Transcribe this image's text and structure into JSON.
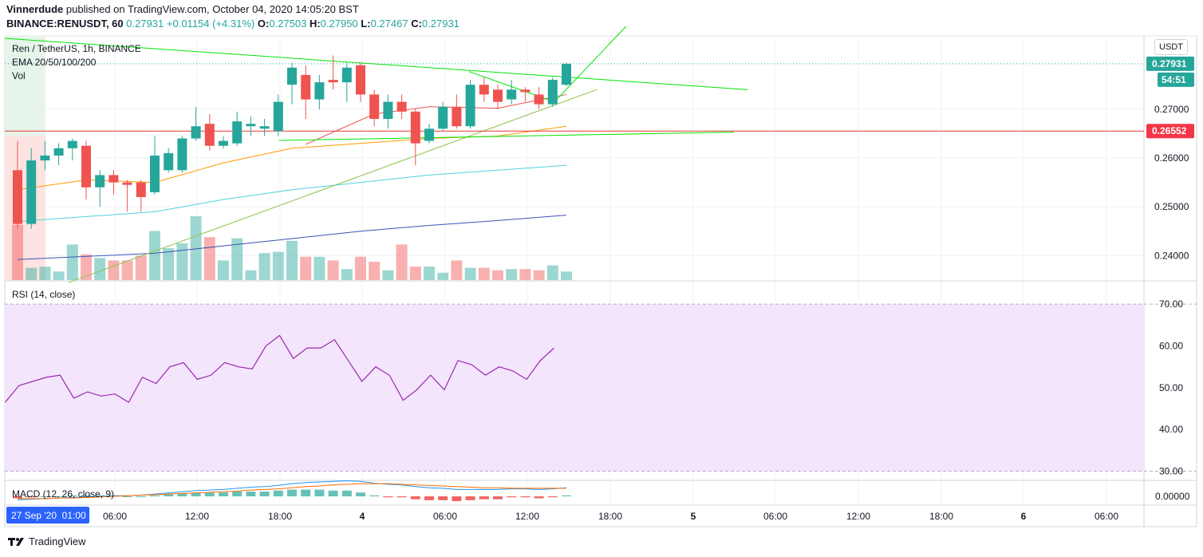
{
  "header": {
    "author": "Vinnerdude",
    "published": "published on TradingView.com, October 04, 2020 14:05:20 BST",
    "symbol": "BINANCE:RENUSDT, 60",
    "last": "0.27931",
    "change": "+0.01154 (+4.31%)",
    "o_label": "O:",
    "o": "0.27503",
    "h_label": "H:",
    "h": "0.27950",
    "l_label": "L:",
    "l": "0.27467",
    "c_label": "C:",
    "c": "0.27931"
  },
  "legend": {
    "title": "Ren / TetherUS, 1h, BINANCE",
    "ema": "EMA 20/50/100/200",
    "vol": "Vol",
    "rsi": "RSI (14, close)",
    "macd": "MACD (12, 26, close, 9)"
  },
  "currency_button": "USDT",
  "footer": {
    "brand": "TradingView"
  },
  "colors": {
    "up": "#26a69a",
    "down": "#ef5350",
    "rsi": "#9c27b0",
    "rsi_band": "#f3e5fc",
    "ema20": "#ef5350",
    "ema50": "#ff9800",
    "ema100": "#4dd0e1",
    "ema200": "#3f51b5",
    "trend": "#00e600",
    "hline": "#e53935"
  },
  "chart_data": [
    {
      "type": "candlestick",
      "title": "Ren / TetherUS, 1h, BINANCE",
      "x_ticks": [
        "06:00",
        "12:00",
        "18:00",
        "4",
        "06:00",
        "12:00",
        "18:00",
        "5",
        "06:00",
        "12:00",
        "18:00",
        "6",
        "06:00"
      ],
      "x_range_label": "27 Sep '20  01:00",
      "y_ticks": [
        "0.24000",
        "0.25000",
        "0.26000",
        "0.27000"
      ],
      "ylim": [
        0.235,
        0.285
      ],
      "last_price_label": "0.27931",
      "countdown_label": "54:51",
      "hline_label": "0.26552",
      "hline_value": 0.26552,
      "candles": [
        {
          "o": 0.2575,
          "h": 0.2635,
          "l": 0.2455,
          "c": 0.2465
        },
        {
          "o": 0.2465,
          "h": 0.262,
          "l": 0.2455,
          "c": 0.2595
        },
        {
          "o": 0.2595,
          "h": 0.2635,
          "l": 0.2575,
          "c": 0.2605
        },
        {
          "o": 0.2605,
          "h": 0.263,
          "l": 0.2585,
          "c": 0.262
        },
        {
          "o": 0.262,
          "h": 0.264,
          "l": 0.2595,
          "c": 0.2635
        },
        {
          "o": 0.2625,
          "h": 0.2635,
          "l": 0.2515,
          "c": 0.254
        },
        {
          "o": 0.254,
          "h": 0.2575,
          "l": 0.25,
          "c": 0.2565
        },
        {
          "o": 0.2565,
          "h": 0.2575,
          "l": 0.2525,
          "c": 0.255
        },
        {
          "o": 0.255,
          "h": 0.2555,
          "l": 0.249,
          "c": 0.2545
        },
        {
          "o": 0.255,
          "h": 0.2555,
          "l": 0.249,
          "c": 0.252
        },
        {
          "o": 0.253,
          "h": 0.2645,
          "l": 0.2525,
          "c": 0.2605
        },
        {
          "o": 0.2575,
          "h": 0.262,
          "l": 0.257,
          "c": 0.261
        },
        {
          "o": 0.2575,
          "h": 0.2645,
          "l": 0.257,
          "c": 0.264
        },
        {
          "o": 0.264,
          "h": 0.2705,
          "l": 0.2635,
          "c": 0.2665
        },
        {
          "o": 0.267,
          "h": 0.269,
          "l": 0.2615,
          "c": 0.2625
        },
        {
          "o": 0.2625,
          "h": 0.2645,
          "l": 0.262,
          "c": 0.2635
        },
        {
          "o": 0.263,
          "h": 0.2695,
          "l": 0.2625,
          "c": 0.2675
        },
        {
          "o": 0.2665,
          "h": 0.2685,
          "l": 0.2645,
          "c": 0.267
        },
        {
          "o": 0.266,
          "h": 0.268,
          "l": 0.2645,
          "c": 0.2665
        },
        {
          "o": 0.2655,
          "h": 0.273,
          "l": 0.2645,
          "c": 0.2715
        },
        {
          "o": 0.275,
          "h": 0.2795,
          "l": 0.271,
          "c": 0.2785
        },
        {
          "o": 0.277,
          "h": 0.279,
          "l": 0.268,
          "c": 0.272
        },
        {
          "o": 0.272,
          "h": 0.277,
          "l": 0.27,
          "c": 0.2755
        },
        {
          "o": 0.276,
          "h": 0.281,
          "l": 0.274,
          "c": 0.2755
        },
        {
          "o": 0.2755,
          "h": 0.2795,
          "l": 0.2715,
          "c": 0.2785
        },
        {
          "o": 0.279,
          "h": 0.2795,
          "l": 0.2715,
          "c": 0.273
        },
        {
          "o": 0.273,
          "h": 0.274,
          "l": 0.2665,
          "c": 0.268
        },
        {
          "o": 0.268,
          "h": 0.273,
          "l": 0.266,
          "c": 0.2715
        },
        {
          "o": 0.2715,
          "h": 0.273,
          "l": 0.268,
          "c": 0.2695
        },
        {
          "o": 0.2695,
          "h": 0.27,
          "l": 0.2585,
          "c": 0.263
        },
        {
          "o": 0.2635,
          "h": 0.267,
          "l": 0.263,
          "c": 0.266
        },
        {
          "o": 0.266,
          "h": 0.2715,
          "l": 0.2655,
          "c": 0.2705
        },
        {
          "o": 0.2705,
          "h": 0.273,
          "l": 0.266,
          "c": 0.2665
        },
        {
          "o": 0.2665,
          "h": 0.276,
          "l": 0.266,
          "c": 0.275
        },
        {
          "o": 0.275,
          "h": 0.2765,
          "l": 0.2715,
          "c": 0.273
        },
        {
          "o": 0.274,
          "h": 0.275,
          "l": 0.27,
          "c": 0.2715
        },
        {
          "o": 0.272,
          "h": 0.276,
          "l": 0.271,
          "c": 0.274
        },
        {
          "o": 0.274,
          "h": 0.2745,
          "l": 0.2715,
          "c": 0.2735
        },
        {
          "o": 0.273,
          "h": 0.2745,
          "l": 0.27,
          "c": 0.271
        },
        {
          "o": 0.271,
          "h": 0.2765,
          "l": 0.2705,
          "c": 0.276
        },
        {
          "o": 0.275,
          "h": 0.2795,
          "l": 0.2747,
          "c": 0.2793
        }
      ],
      "volumes": [
        4.5,
        1.0,
        1.1,
        0.7,
        2.9,
        2.1,
        1.8,
        1.6,
        1.6,
        2.0,
        4.0,
        2.6,
        3.0,
        5.2,
        3.5,
        1.6,
        3.4,
        0.8,
        2.2,
        2.3,
        3.2,
        1.9,
        1.9,
        1.6,
        0.9,
        1.9,
        1.5,
        0.8,
        2.9,
        1.1,
        1.1,
        0.6,
        1.6,
        1.0,
        1.0,
        0.8,
        0.9,
        0.9,
        0.8,
        1.2,
        0.7
      ],
      "ema": {
        "ema20": {
          "name": "EMA 20",
          "points": [
            [
              21,
              0.2628
            ],
            [
              26,
              0.269
            ],
            [
              30,
              0.2705
            ],
            [
              35,
              0.2702
            ],
            [
              40,
              0.273
            ]
          ]
        },
        "ema50": {
          "name": "EMA 50",
          "points": [
            [
              0,
              0.2535
            ],
            [
              5,
              0.2555
            ],
            [
              10,
              0.255
            ],
            [
              15,
              0.259
            ],
            [
              20,
              0.262
            ],
            [
              25,
              0.263
            ],
            [
              30,
              0.264
            ],
            [
              35,
              0.2645
            ],
            [
              40,
              0.2665
            ]
          ]
        },
        "ema100": {
          "name": "EMA 100",
          "points": [
            [
              0,
              0.247
            ],
            [
              10,
              0.249
            ],
            [
              15,
              0.2515
            ],
            [
              20,
              0.2535
            ],
            [
              25,
              0.255
            ],
            [
              30,
              0.2565
            ],
            [
              35,
              0.2575
            ],
            [
              40,
              0.2585
            ]
          ]
        },
        "ema200": {
          "name": "EMA 200",
          "points": [
            [
              0,
              0.2392
            ],
            [
              10,
              0.2405
            ],
            [
              15,
              0.242
            ],
            [
              20,
              0.2435
            ],
            [
              25,
              0.245
            ],
            [
              30,
              0.2462
            ],
            [
              35,
              0.2472
            ],
            [
              40,
              0.2483
            ]
          ]
        }
      }
    },
    {
      "type": "line",
      "title": "RSI (14, close)",
      "y_ticks": [
        "30.00",
        "40.00",
        "50.00",
        "60.00",
        "70.00"
      ],
      "ylim": [
        28,
        75
      ],
      "band": [
        30,
        70
      ],
      "values": [
        46.5,
        50.5,
        51.5,
        52.5,
        53.0,
        47.5,
        49.0,
        48.0,
        48.5,
        46.5,
        52.5,
        51.0,
        55.0,
        56.0,
        52.0,
        53.0,
        56.0,
        55.0,
        54.5,
        60.0,
        62.5,
        57.0,
        59.5,
        59.5,
        61.5,
        56.5,
        51.5,
        55.0,
        53.0,
        47.0,
        49.5,
        53.0,
        49.5,
        56.5,
        55.5,
        53.0,
        55.0,
        54.0,
        52.0,
        56.5,
        59.5
      ]
    },
    {
      "type": "bar",
      "title": "MACD (12, 26, close, 9)",
      "y_ticks": [
        "0.00000"
      ],
      "macd": [
        -0.0006,
        -0.0005,
        -0.0004,
        -0.0003,
        -0.0002,
        -0.0001,
        0,
        0.0001,
        0.0001,
        0.0002,
        0.0004,
        0.0006,
        0.0008,
        0.001,
        0.0011,
        0.0012,
        0.0014,
        0.0016,
        0.0017,
        0.0019,
        0.0022,
        0.0024,
        0.0025,
        0.0026,
        0.0027,
        0.0026,
        0.0023,
        0.0021,
        0.002,
        0.0017,
        0.0015,
        0.0014,
        0.0012,
        0.0012,
        0.0012,
        0.0012,
        0.0013,
        0.0013,
        0.0012,
        0.0013,
        0.0015
      ],
      "signal": [
        -0.0004,
        -0.0004,
        -0.0004,
        -0.0003,
        -0.0003,
        -0.0002,
        -0.0001,
        0,
        0.0001,
        0.0002,
        0.0003,
        0.0004,
        0.0005,
        0.0006,
        0.0007,
        0.0008,
        0.0009,
        0.0011,
        0.0012,
        0.0013,
        0.0015,
        0.0017,
        0.0018,
        0.002,
        0.0021,
        0.0022,
        0.0022,
        0.0022,
        0.0021,
        0.002,
        0.0019,
        0.0018,
        0.0017,
        0.0016,
        0.0015,
        0.0015,
        0.0014,
        0.0014,
        0.0014,
        0.0014,
        0.0014
      ],
      "histogram": [
        -0.0002,
        -0.0001,
        0,
        0,
        0.0001,
        0.0001,
        0.0001,
        0.0001,
        0,
        0,
        0.0001,
        0.0002,
        0.0003,
        0.0004,
        0.0004,
        0.0004,
        0.0005,
        0.0005,
        0.0005,
        0.0006,
        0.0007,
        0.0007,
        0.0007,
        0.0006,
        0.0006,
        0.0004,
        0.0001,
        -0.0001,
        -0.0001,
        -0.0003,
        -0.0004,
        -0.0004,
        -0.0005,
        -0.0004,
        -0.0003,
        -0.0003,
        -0.0001,
        -0.0001,
        -0.0002,
        -0.0001,
        0.0001
      ]
    }
  ]
}
